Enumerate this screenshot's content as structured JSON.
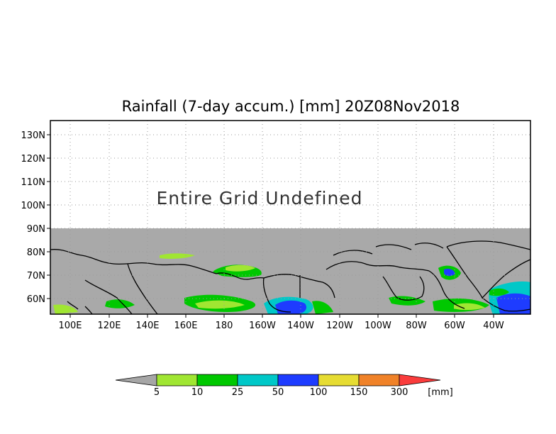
{
  "title": "Rainfall (7-day accum.) [mm] 20Z08Nov2018",
  "overlay_message": "Entire Grid Undefined",
  "lat_ticks": [
    "130N",
    "120N",
    "110N",
    "100N",
    "90N",
    "80N",
    "70N",
    "60N"
  ],
  "lon_ticks": [
    "100E",
    "120E",
    "140E",
    "160E",
    "180",
    "160W",
    "140W",
    "120W",
    "100W",
    "80W",
    "60W",
    "40W"
  ],
  "colorbar": {
    "unit": "[mm]",
    "labels": [
      "5",
      "10",
      "25",
      "50",
      "100",
      "150",
      "300"
    ],
    "colors": [
      "#a6a6a6",
      "#a0e632",
      "#00c800",
      "#00c8c8",
      "#1e3cff",
      "#e6dc32",
      "#f08228",
      "#fa3c3c"
    ]
  },
  "colors": {
    "no_data": "#a9a9a9",
    "coastline": "#000000",
    "grid": "#9a9a9a"
  }
}
